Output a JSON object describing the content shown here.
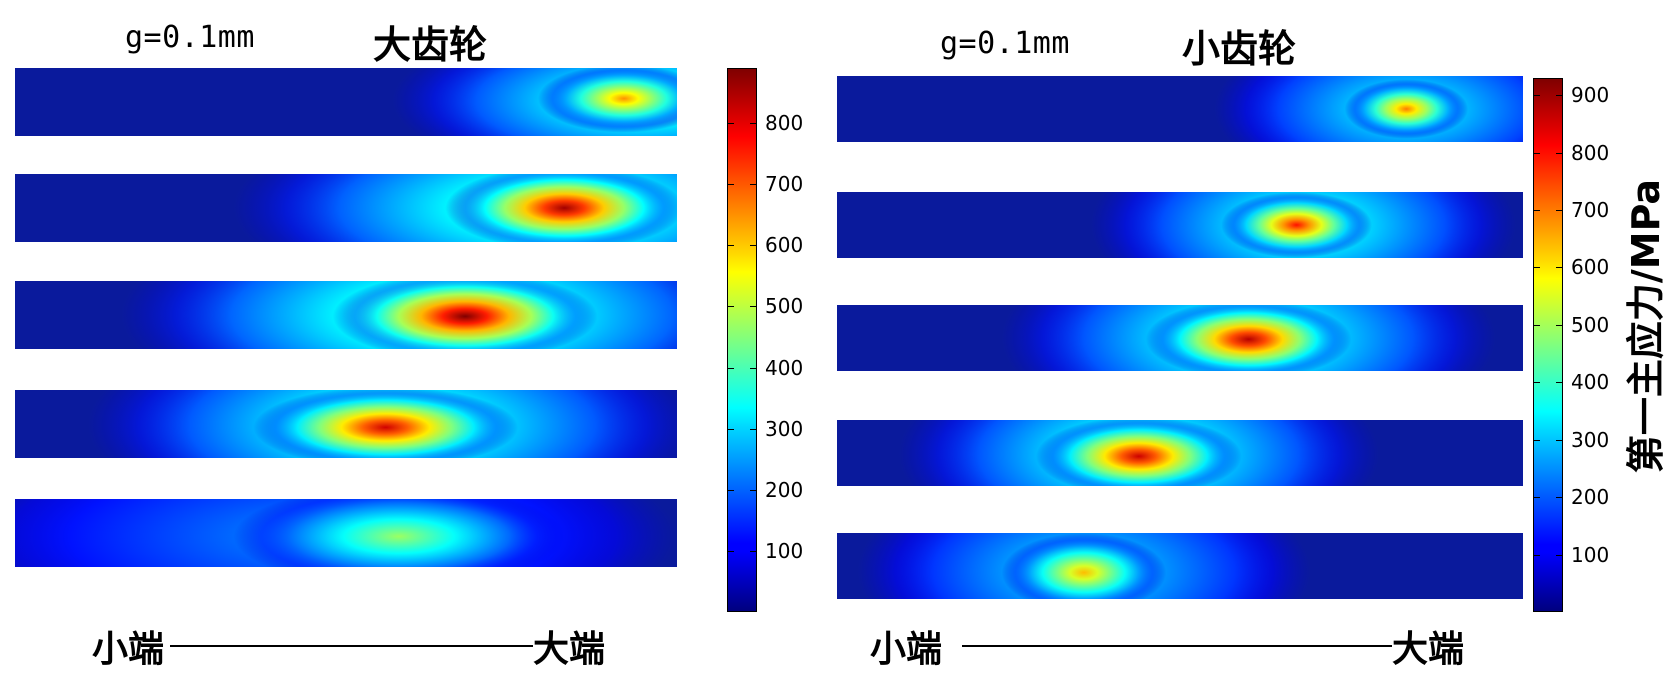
{
  "colormap": "jet",
  "chart_data": [
    {
      "type": "heatmap",
      "title": "大齿轮",
      "subtitle": "g=0.1mm",
      "xlabel_left": "小端",
      "xlabel_right": "大端",
      "clim": [
        0,
        890
      ],
      "colorbar_ticks": [
        100,
        200,
        300,
        400,
        500,
        600,
        700,
        800
      ],
      "strips": [
        {
          "hotspots": [
            {
              "x": 0.92,
              "y": 0.45,
              "rx": 0.13,
              "ry": 0.5,
              "peak": 650
            },
            {
              "x": 0.95,
              "y": 0.48,
              "rx": 0.38,
              "ry": 1.2,
              "peak": 430
            }
          ]
        },
        {
          "hotspots": [
            {
              "x": 0.83,
              "y": 0.5,
              "rx": 0.18,
              "ry": 0.62,
              "peak": 860
            },
            {
              "x": 0.81,
              "y": 0.5,
              "rx": 0.48,
              "ry": 1.5,
              "peak": 450
            }
          ]
        },
        {
          "hotspots": [
            {
              "x": 0.68,
              "y": 0.52,
              "rx": 0.2,
              "ry": 0.65,
              "peak": 890
            },
            {
              "x": 0.66,
              "y": 0.5,
              "rx": 0.5,
              "ry": 1.6,
              "peak": 460
            }
          ]
        },
        {
          "hotspots": [
            {
              "x": 0.56,
              "y": 0.55,
              "rx": 0.2,
              "ry": 0.6,
              "peak": 820
            },
            {
              "x": 0.57,
              "y": 0.52,
              "rx": 0.46,
              "ry": 1.6,
              "peak": 430
            }
          ]
        },
        {
          "hotspots": [
            {
              "x": 0.58,
              "y": 0.55,
              "rx": 0.25,
              "ry": 0.75,
              "peak": 470
            },
            {
              "x": 0.45,
              "y": 0.55,
              "rx": 0.55,
              "ry": 1.6,
              "peak": 240
            }
          ]
        }
      ]
    },
    {
      "type": "heatmap",
      "title": "小齿轮",
      "subtitle": "g=0.1mm",
      "xlabel_left": "小端",
      "xlabel_right": "大端",
      "colorbar_label": "第一主应力/MPa",
      "clim": [
        0,
        930
      ],
      "colorbar_ticks": [
        100,
        200,
        300,
        400,
        500,
        600,
        700,
        800,
        900
      ],
      "strips": [
        {
          "hotspots": [
            {
              "x": 0.83,
              "y": 0.5,
              "rx": 0.09,
              "ry": 0.45,
              "peak": 700
            },
            {
              "x": 0.83,
              "y": 0.5,
              "rx": 0.28,
              "ry": 1.3,
              "peak": 380
            }
          ]
        },
        {
          "hotspots": [
            {
              "x": 0.67,
              "y": 0.5,
              "rx": 0.11,
              "ry": 0.5,
              "peak": 800
            },
            {
              "x": 0.68,
              "y": 0.5,
              "rx": 0.31,
              "ry": 1.5,
              "peak": 420
            }
          ]
        },
        {
          "hotspots": [
            {
              "x": 0.6,
              "y": 0.52,
              "rx": 0.15,
              "ry": 0.6,
              "peak": 880
            },
            {
              "x": 0.6,
              "y": 0.5,
              "rx": 0.36,
              "ry": 1.6,
              "peak": 440
            }
          ]
        },
        {
          "hotspots": [
            {
              "x": 0.44,
              "y": 0.55,
              "rx": 0.15,
              "ry": 0.6,
              "peak": 860
            },
            {
              "x": 0.44,
              "y": 0.52,
              "rx": 0.35,
              "ry": 1.6,
              "peak": 440
            }
          ]
        },
        {
          "hotspots": [
            {
              "x": 0.36,
              "y": 0.6,
              "rx": 0.12,
              "ry": 0.6,
              "peak": 640
            },
            {
              "x": 0.36,
              "y": 0.58,
              "rx": 0.33,
              "ry": 1.6,
              "peak": 350
            }
          ]
        }
      ]
    }
  ]
}
